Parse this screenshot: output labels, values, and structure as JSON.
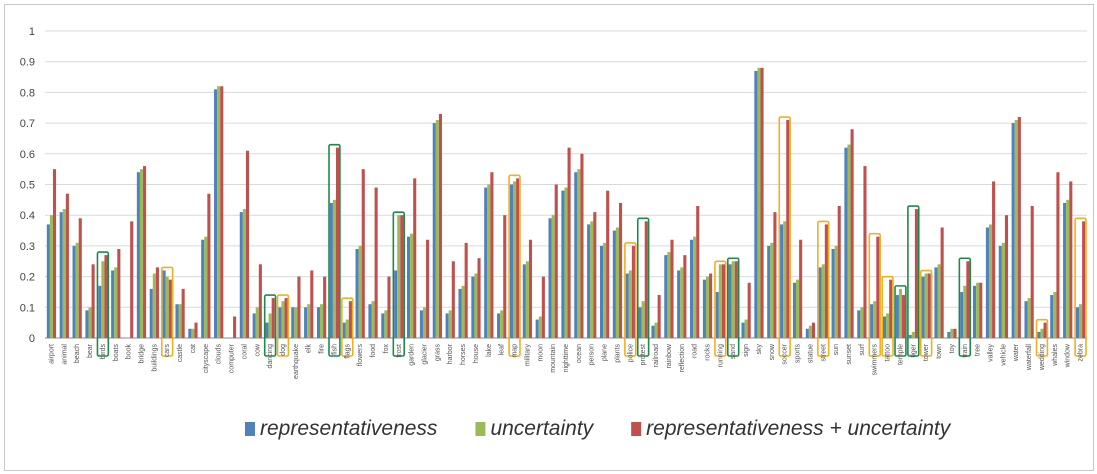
{
  "chart_data": {
    "type": "bar",
    "ylim": [
      0,
      1
    ],
    "yticks": [
      "0",
      "0.1",
      "0.2",
      "0.3",
      "0.4",
      "0.5",
      "0.6",
      "0.7",
      "0.8",
      "0.9",
      "1"
    ],
    "grid": true,
    "legend_position": "bottom",
    "categories": [
      "airport",
      "animal",
      "beach",
      "bear",
      "birds",
      "boats",
      "book",
      "bridge",
      "buildings",
      "cars",
      "castle",
      "cat",
      "cityscape",
      "clouds",
      "computer",
      "coral",
      "cow",
      "dancing",
      "dog",
      "earthquake",
      "elk",
      "fire",
      "fish",
      "flags",
      "flowers",
      "food",
      "fox",
      "frost",
      "garden",
      "glacier",
      "grass",
      "harbor",
      "horses",
      "house",
      "lake",
      "leaf",
      "map",
      "military",
      "moon",
      "mountain",
      "nighttime",
      "ocean",
      "person",
      "plane",
      "plants",
      "police",
      "protest",
      "railroad",
      "rainbow",
      "reflection",
      "road",
      "rocks",
      "running",
      "sand",
      "sign",
      "sky",
      "snow",
      "soccer",
      "sports",
      "statue",
      "street",
      "sun",
      "sunset",
      "surf",
      "swimmers",
      "tattoo",
      "temple",
      "tiger",
      "tower",
      "town",
      "toy",
      "train",
      "tree",
      "valley",
      "vehicle",
      "water",
      "waterfall",
      "wedding",
      "whales",
      "window",
      "zebra"
    ],
    "highlighted": [
      {
        "label": "birds",
        "color": "#1e8a4a"
      },
      {
        "label": "cars",
        "color": "#f0b020"
      },
      {
        "label": "dancing",
        "color": "#1e8a4a"
      },
      {
        "label": "dog",
        "color": "#f0b020"
      },
      {
        "label": "fish",
        "color": "#1e8a4a"
      },
      {
        "label": "flags",
        "color": "#f0b020"
      },
      {
        "label": "frost",
        "color": "#1e8a4a"
      },
      {
        "label": "map",
        "color": "#f0b020"
      },
      {
        "label": "police",
        "color": "#f0b020"
      },
      {
        "label": "protest",
        "color": "#1e8a4a"
      },
      {
        "label": "running",
        "color": "#f0b020"
      },
      {
        "label": "sand",
        "color": "#1e8a4a"
      },
      {
        "label": "soccer",
        "color": "#f0b020"
      },
      {
        "label": "street",
        "color": "#f0b020"
      },
      {
        "label": "swimmers",
        "color": "#f0b020"
      },
      {
        "label": "tattoo",
        "color": "#f0b020"
      },
      {
        "label": "temple",
        "color": "#1e8a4a"
      },
      {
        "label": "tiger",
        "color": "#1e8a4a"
      },
      {
        "label": "tower",
        "color": "#f0b020"
      },
      {
        "label": "train",
        "color": "#1e8a4a"
      },
      {
        "label": "wedding",
        "color": "#f0b020"
      },
      {
        "label": "zebra",
        "color": "#f0b020"
      }
    ],
    "series": [
      {
        "name": "representativeness",
        "color": "#4f81bd",
        "values": [
          0.37,
          0.41,
          0.3,
          0.09,
          0.17,
          0.22,
          0.0,
          0.54,
          0.16,
          0.22,
          0.11,
          0.03,
          0.32,
          0.81,
          0.0,
          0.41,
          0.08,
          0.05,
          0.1,
          0.1,
          0.1,
          0.1,
          0.44,
          0.05,
          0.29,
          0.11,
          0.08,
          0.22,
          0.33,
          0.09,
          0.7,
          0.08,
          0.16,
          0.2,
          0.49,
          0.08,
          0.5,
          0.24,
          0.06,
          0.39,
          0.48,
          0.54,
          0.37,
          0.3,
          0.35,
          0.21,
          0.1,
          0.04,
          0.27,
          0.22,
          0.32,
          0.19,
          0.15,
          0.24,
          0.05,
          0.87,
          0.3,
          0.37,
          0.18,
          0.03,
          0.23,
          0.29,
          0.62,
          0.09,
          0.11,
          0.07,
          0.14,
          0.01,
          0.2,
          0.23,
          0.02,
          0.15,
          0.17,
          0.36,
          0.3,
          0.7,
          0.12,
          0.02,
          0.14,
          0.44,
          0.1
        ]
      },
      {
        "name": "uncertainty",
        "color": "#9bbb59",
        "values": [
          0.4,
          0.42,
          0.31,
          0.1,
          0.25,
          0.23,
          0.0,
          0.55,
          0.21,
          0.2,
          0.11,
          0.03,
          0.33,
          0.82,
          0.0,
          0.42,
          0.1,
          0.08,
          0.12,
          0.1,
          0.11,
          0.11,
          0.45,
          0.06,
          0.3,
          0.12,
          0.09,
          0.4,
          0.34,
          0.1,
          0.71,
          0.09,
          0.17,
          0.21,
          0.5,
          0.09,
          0.51,
          0.25,
          0.07,
          0.4,
          0.49,
          0.55,
          0.38,
          0.31,
          0.36,
          0.22,
          0.12,
          0.05,
          0.28,
          0.23,
          0.33,
          0.2,
          0.24,
          0.25,
          0.06,
          0.88,
          0.31,
          0.38,
          0.19,
          0.04,
          0.24,
          0.3,
          0.63,
          0.1,
          0.12,
          0.08,
          0.16,
          0.02,
          0.21,
          0.24,
          0.03,
          0.17,
          0.18,
          0.37,
          0.31,
          0.71,
          0.13,
          0.03,
          0.15,
          0.45,
          0.11
        ]
      },
      {
        "name": "representativeness + uncertainty",
        "color": "#c0504d",
        "values": [
          0.55,
          0.47,
          0.39,
          0.24,
          0.27,
          0.29,
          0.38,
          0.56,
          0.23,
          0.19,
          0.16,
          0.05,
          0.47,
          0.82,
          0.07,
          0.61,
          0.24,
          0.13,
          0.13,
          0.2,
          0.22,
          0.2,
          0.62,
          0.12,
          0.55,
          0.49,
          0.2,
          0.4,
          0.52,
          0.32,
          0.73,
          0.25,
          0.31,
          0.26,
          0.54,
          0.4,
          0.52,
          0.32,
          0.2,
          0.5,
          0.62,
          0.6,
          0.41,
          0.48,
          0.44,
          0.3,
          0.38,
          0.14,
          0.32,
          0.27,
          0.43,
          0.21,
          0.24,
          0.25,
          0.18,
          0.88,
          0.41,
          0.71,
          0.32,
          0.05,
          0.37,
          0.43,
          0.68,
          0.56,
          0.33,
          0.19,
          0.14,
          0.42,
          0.21,
          0.36,
          0.03,
          0.25,
          0.18,
          0.51,
          0.4,
          0.72,
          0.43,
          0.05,
          0.54,
          0.51,
          0.38
        ]
      }
    ]
  }
}
